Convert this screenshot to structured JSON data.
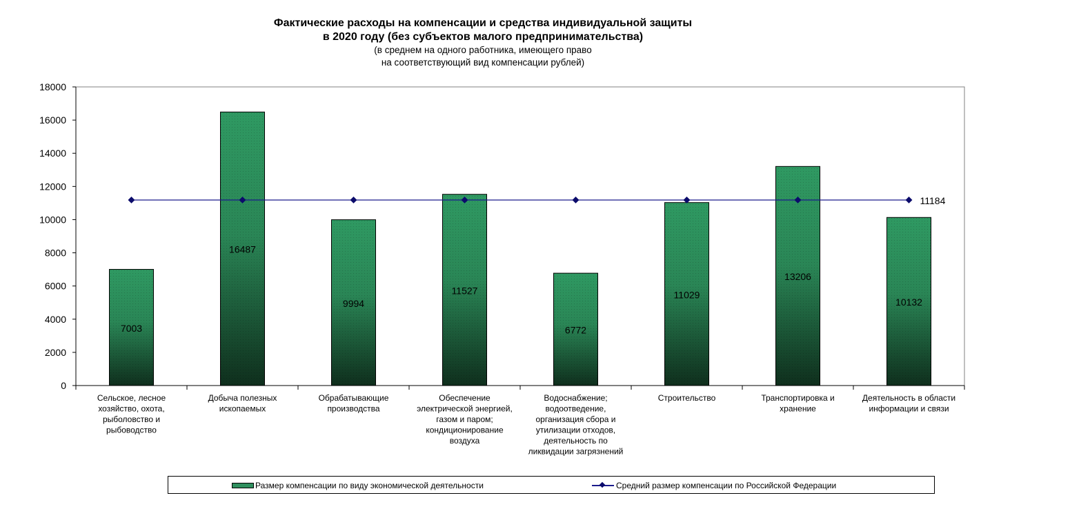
{
  "chart_data": {
    "type": "bar",
    "title": "Фактические расходы на компенсации и средства индивидуальной защиты",
    "title_line2": "в 2020 году (без субъектов малого предпринимательства)",
    "subtitle": "(в среднем на одного работника,  имеющего право",
    "subtitle_line2": "на соответствующий  вид компенсации  рублей)",
    "ylim": [
      0,
      18000
    ],
    "yticks": [
      0,
      2000,
      4000,
      6000,
      8000,
      10000,
      12000,
      14000,
      16000,
      18000
    ],
    "grid": false,
    "legend_position": "bottom",
    "categories": [
      [
        "Сельское, лесное",
        "хозяйство, охота,",
        "рыболовство и",
        "рыбоводство"
      ],
      [
        "Добыча полезных",
        "ископаемых"
      ],
      [
        "Обрабатывающие",
        "производства"
      ],
      [
        "Обеспечение",
        "электрической энергией,",
        "газом и паром;",
        "кондиционирование",
        "воздуха"
      ],
      [
        "Водоснабжение;",
        "водоотведение,",
        "организация сбора и",
        "утилизации отходов,",
        "деятельность по",
        "ликвидации загрязнений"
      ],
      [
        "Строительство"
      ],
      [
        "Транспортировка и",
        "хранение"
      ],
      [
        "Деятельность в области",
        "информации и связи"
      ]
    ],
    "series": [
      {
        "name": "Размер компенсации по  виду экономической деятельности",
        "type": "bar",
        "color": "#2f8f5e",
        "values": [
          7003,
          16487,
          9994,
          11527,
          6772,
          11029,
          13206,
          10132
        ],
        "labels": [
          "7003",
          "16487",
          "9994",
          "11527",
          "6772",
          "11029",
          "13206",
          "10132"
        ]
      },
      {
        "name": "Средний  размер компенсации  по Российской Федерации",
        "type": "line",
        "color": "#1a1a8c",
        "values": [
          11184,
          11184,
          11184,
          11184,
          11184,
          11184,
          11184,
          11184
        ],
        "end_label": "11184"
      }
    ]
  }
}
